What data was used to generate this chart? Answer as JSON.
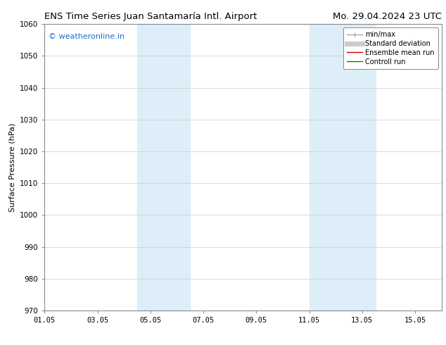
{
  "title_left": "ENS Time Series Juan Santamaría Intl. Airport",
  "title_right": "Mo. 29.04.2024 23 UTC",
  "ylabel": "Surface Pressure (hPa)",
  "ylim": [
    970,
    1060
  ],
  "yticks": [
    970,
    980,
    990,
    1000,
    1010,
    1020,
    1030,
    1040,
    1050,
    1060
  ],
  "xstart": "2024-05-01",
  "xend": "2024-05-16",
  "xtick_labels": [
    "01.05",
    "03.05",
    "05.05",
    "07.05",
    "09.05",
    "11.05",
    "13.05",
    "15.05"
  ],
  "xtick_positions": [
    0,
    2,
    4,
    6,
    8,
    10,
    12,
    14
  ],
  "shaded_bands": [
    {
      "xstart": 3.5,
      "xend": 5.5
    },
    {
      "xstart": 10.0,
      "xend": 12.5
    }
  ],
  "band_color": "#ddeef8",
  "watermark_text": "© weatheronline.in",
  "watermark_color": "#1a6fcc",
  "legend_entries": [
    {
      "label": "min/max",
      "color": "#aaaaaa",
      "lw": 1.0
    },
    {
      "label": "Standard deviation",
      "color": "#cccccc",
      "lw": 5
    },
    {
      "label": "Ensemble mean run",
      "color": "#cc0000",
      "lw": 1.0
    },
    {
      "label": "Controll run",
      "color": "#008800",
      "lw": 1.0
    }
  ],
  "grid_color": "#cccccc",
  "spine_color": "#888888",
  "bg_color": "#ffffff",
  "title_fontsize": 9.5,
  "ylabel_fontsize": 8,
  "tick_fontsize": 7.5,
  "watermark_fontsize": 8,
  "legend_fontsize": 7,
  "xmin": 0,
  "xmax": 15
}
